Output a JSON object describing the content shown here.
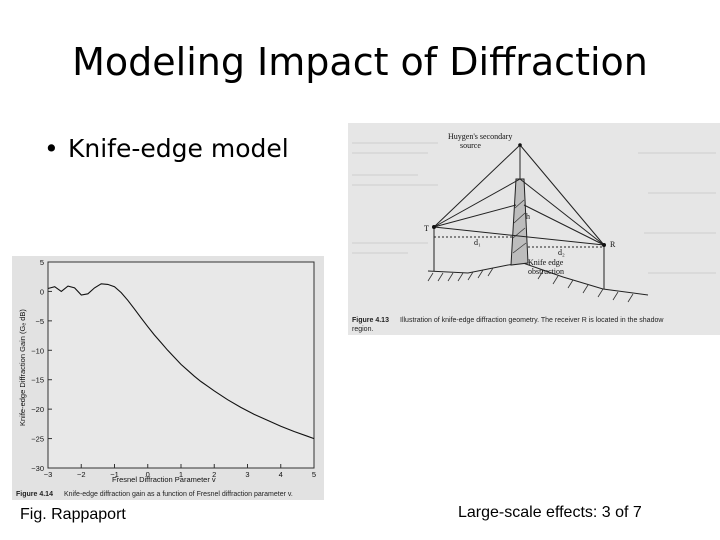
{
  "slide": {
    "title": "Modeling Impact of Diffraction",
    "bullet": "Knife-edge model",
    "footer_left": "Fig. Rappaport",
    "footer_right": "Large-scale effects: 3 of 7"
  },
  "figure_top": {
    "label_source": "Huygen's secondary",
    "label_source2": "source",
    "label_T": "T",
    "label_R": "R",
    "label_h": "h",
    "label_d1": "d₁",
    "label_d2": "d₂",
    "label_knife": "Knife edge",
    "label_obstruction": "obstruction",
    "caption_num": "Figure 4.13",
    "caption_text": "Illustration of knife-edge diffraction geometry. The receiver R is located in the shadow",
    "caption_text2": "region."
  },
  "figure_bottom": {
    "ylabel": "Knife-edge Diffraction Gain (Gₑ dB)",
    "xlabel": "Fresnel Diffraction Parameter v",
    "caption_num": "Figure 4.14",
    "caption_text": "Knife-edge diffraction gain as a function of Fresnel diffraction parameter v."
  },
  "chart_data": {
    "type": "line",
    "xlabel": "Fresnel Diffraction Parameter v",
    "ylabel": "Knife-edge Diffraction Gain (Gₑ dB)",
    "xlim": [
      -3,
      5
    ],
    "ylim": [
      -30,
      5
    ],
    "x_ticks": [
      -3,
      -2,
      -1,
      0,
      1,
      2,
      3,
      4,
      5
    ],
    "y_ticks": [
      5,
      0,
      -5,
      -10,
      -15,
      -20,
      -25,
      -30
    ],
    "x_tick_labels": [
      "−3",
      "−2",
      "−1",
      "0",
      "1",
      "2",
      "3",
      "4",
      "5"
    ],
    "y_tick_labels": [
      "5",
      "0",
      "−5",
      "−10",
      "−15",
      "−20",
      "−25",
      "−30"
    ],
    "series": [
      {
        "x": [
          -3,
          -2.8,
          -2.6,
          -2.4,
          -2.2,
          -2.0,
          -1.8,
          -1.6,
          -1.4,
          -1.2,
          -1.0,
          -0.8,
          -0.6,
          -0.4,
          -0.2,
          0,
          0.2,
          0.4,
          0.6,
          0.8,
          1.0,
          1.2,
          1.4,
          1.6,
          1.8,
          2.0,
          2.4,
          2.8,
          3.2,
          3.6,
          4.0,
          4.4,
          4.8,
          5.0
        ],
        "y": [
          0.5,
          0.8,
          0.0,
          0.9,
          0.6,
          -0.6,
          -0.4,
          0.6,
          1.3,
          1.2,
          0.8,
          -0.2,
          -1.5,
          -3.0,
          -4.5,
          -6.0,
          -7.4,
          -8.7,
          -10.0,
          -11.2,
          -12.4,
          -13.4,
          -14.4,
          -15.3,
          -16.1,
          -16.9,
          -18.4,
          -19.7,
          -20.9,
          -21.9,
          -22.9,
          -23.8,
          -24.6,
          -25.0
        ]
      }
    ]
  }
}
